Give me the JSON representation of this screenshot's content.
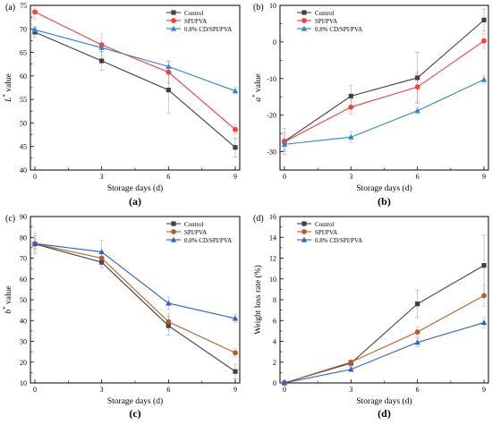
{
  "chart_data": [
    {
      "type": "line",
      "panel_label": "(a)",
      "caption": "(a)",
      "xlabel": "Storage days (d)",
      "ylabel": "L* value",
      "ylabel_main": "L",
      "ylabel_sup": "*",
      "ylabel_rest": " value",
      "x": [
        0,
        3,
        6,
        9
      ],
      "xlim": [
        -0.2,
        9.2
      ],
      "xticks": [
        0,
        3,
        6,
        9
      ],
      "ylim": [
        40,
        75
      ],
      "yticks": [
        40,
        45,
        50,
        55,
        60,
        65,
        70,
        75
      ],
      "legend_position": "top-right",
      "series": [
        {
          "name": "Control",
          "color": "#404040",
          "marker": "square",
          "values": [
            69.3,
            63.2,
            57.0,
            44.8
          ],
          "errors": [
            1.0,
            2.0,
            5.0,
            2.0
          ]
        },
        {
          "name": "SPI/PVA",
          "color": "#ff3b3b",
          "marker": "circle",
          "values": [
            73.6,
            66.6,
            60.8,
            48.6
          ],
          "errors": [
            1.5,
            2.3,
            2.3,
            1.0
          ]
        },
        {
          "name": "0.8% CD/SPI/PVA",
          "color": "#2a86d8",
          "marker": "triangle",
          "values": [
            69.8,
            66.0,
            62.0,
            56.8
          ],
          "errors": [
            0.8,
            1.0,
            1.2,
            0.8
          ]
        }
      ]
    },
    {
      "type": "line",
      "panel_label": "(b)",
      "caption": "(b)",
      "xlabel": "Storage days (d)",
      "ylabel": "a* value",
      "ylabel_main": "a",
      "ylabel_sup": "*",
      "ylabel_rest": " value",
      "x": [
        0,
        3,
        6,
        9
      ],
      "xlim": [
        -0.2,
        9.2
      ],
      "xticks": [
        0,
        3,
        6,
        9
      ],
      "ylim": [
        -35,
        10
      ],
      "yticks": [
        -30,
        -20,
        -10,
        0,
        10
      ],
      "legend_position": "top-left",
      "series": [
        {
          "name": "Control",
          "color": "#404040",
          "marker": "square",
          "values": [
            -27.2,
            -14.8,
            -9.8,
            6.0
          ],
          "errors": [
            3.5,
            3.0,
            7.0,
            3.0
          ]
        },
        {
          "name": "SPI/PVA",
          "color": "#ff3b3b",
          "marker": "circle",
          "values": [
            -27.3,
            -17.8,
            -12.3,
            0.3
          ],
          "errors": [
            2.5,
            2.0,
            4.0,
            2.0
          ]
        },
        {
          "name": "0.8% CD/SPI/PVA",
          "color": "#2a86d8",
          "marker": "triangle",
          "values": [
            -28.0,
            -26.0,
            -18.8,
            -10.3
          ],
          "errors": [
            1.8,
            1.5,
            1.0,
            1.2
          ]
        }
      ]
    },
    {
      "type": "line",
      "panel_label": "(c)",
      "caption": "(c)",
      "xlabel": "Storage days (d)",
      "ylabel": "b* value",
      "ylabel_main": "b",
      "ylabel_sup": "*",
      "ylabel_rest": " value",
      "x": [
        0,
        3,
        6,
        9
      ],
      "xlim": [
        -0.2,
        9.2
      ],
      "xticks": [
        0,
        3,
        6,
        9
      ],
      "ylim": [
        10,
        90
      ],
      "yticks": [
        10,
        20,
        30,
        40,
        50,
        60,
        70,
        80,
        90
      ],
      "legend_position": "top-right",
      "series": [
        {
          "name": "Control",
          "color": "#404040",
          "marker": "square",
          "values": [
            76.8,
            68.0,
            37.5,
            15.5
          ],
          "errors": [
            2.5,
            2.5,
            4.5,
            3.5
          ]
        },
        {
          "name": "SPI/PVA",
          "color": "#b85d28",
          "marker": "circle",
          "values": [
            76.9,
            70.0,
            39.4,
            24.5
          ],
          "errors": [
            4.0,
            3.0,
            4.0,
            2.0
          ]
        },
        {
          "name": "0.8% CD/SPI/PVA",
          "color": "#2a5fd8",
          "marker": "triangle",
          "values": [
            77.0,
            73.0,
            48.3,
            41.0
          ],
          "errors": [
            5.0,
            5.5,
            3.0,
            2.0
          ]
        }
      ]
    },
    {
      "type": "line",
      "panel_label": "(d)",
      "caption": "(d)",
      "xlabel": "Storage days (d)",
      "ylabel": "Weight loss rate (%)",
      "ylabel_main": "Weight loss rate (%)",
      "ylabel_sup": "",
      "ylabel_rest": "",
      "x": [
        0,
        3,
        6,
        9
      ],
      "xlim": [
        -0.2,
        9.2
      ],
      "xticks": [
        0,
        3,
        6,
        9
      ],
      "ylim": [
        0,
        16
      ],
      "yticks": [
        0,
        2,
        4,
        6,
        8,
        10,
        12,
        14,
        16
      ],
      "legend_position": "top-left",
      "series": [
        {
          "name": "Control",
          "color": "#404040",
          "marker": "square",
          "values": [
            0.0,
            1.9,
            7.6,
            11.3
          ],
          "errors": [
            0.0,
            0.3,
            1.3,
            2.9
          ]
        },
        {
          "name": "SPI/PVA",
          "color": "#b85d28",
          "marker": "circle",
          "values": [
            0.0,
            2.0,
            4.9,
            8.4
          ],
          "errors": [
            0.0,
            0.2,
            0.5,
            1.0
          ]
        },
        {
          "name": "0.8% CD/SPI/PVA",
          "color": "#2a5fd8",
          "marker": "triangle",
          "values": [
            0.0,
            1.3,
            3.9,
            5.8
          ],
          "errors": [
            0.0,
            0.2,
            0.4,
            0.5
          ]
        }
      ]
    }
  ]
}
